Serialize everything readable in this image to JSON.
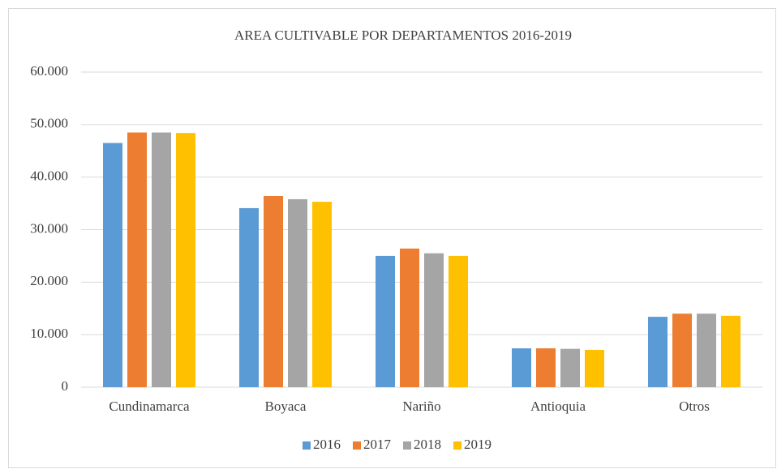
{
  "chart_data": {
    "type": "bar",
    "title": "AREA CULTIVABLE POR DEPARTAMENTOS 2016-2019",
    "categories": [
      "Cundinamarca",
      "Boyaca",
      "Nariño",
      "Antioquia",
      "Otros"
    ],
    "series": [
      {
        "name": "2016",
        "color": "#5b9bd5",
        "values": [
          46500,
          34100,
          25000,
          7400,
          13400
        ]
      },
      {
        "name": "2017",
        "color": "#ed7d31",
        "values": [
          48500,
          36400,
          26400,
          7400,
          14000
        ]
      },
      {
        "name": "2018",
        "color": "#a5a5a5",
        "values": [
          48500,
          35800,
          25500,
          7300,
          14000
        ]
      },
      {
        "name": "2019",
        "color": "#ffc000",
        "values": [
          48400,
          35300,
          25000,
          7100,
          13600
        ]
      }
    ],
    "ylim": [
      0,
      60000
    ],
    "yticks": [
      0,
      {
        "value": 10000,
        "label": "10.000"
      },
      {
        "value": 20000,
        "label": "20.000"
      },
      {
        "value": 30000,
        "label": "30.000"
      },
      {
        "value": 40000,
        "label": "40.000"
      },
      {
        "value": 50000,
        "label": "50.000"
      },
      {
        "value": 60000,
        "label": "60.000"
      }
    ],
    "grid": true,
    "legend": "bottom"
  }
}
